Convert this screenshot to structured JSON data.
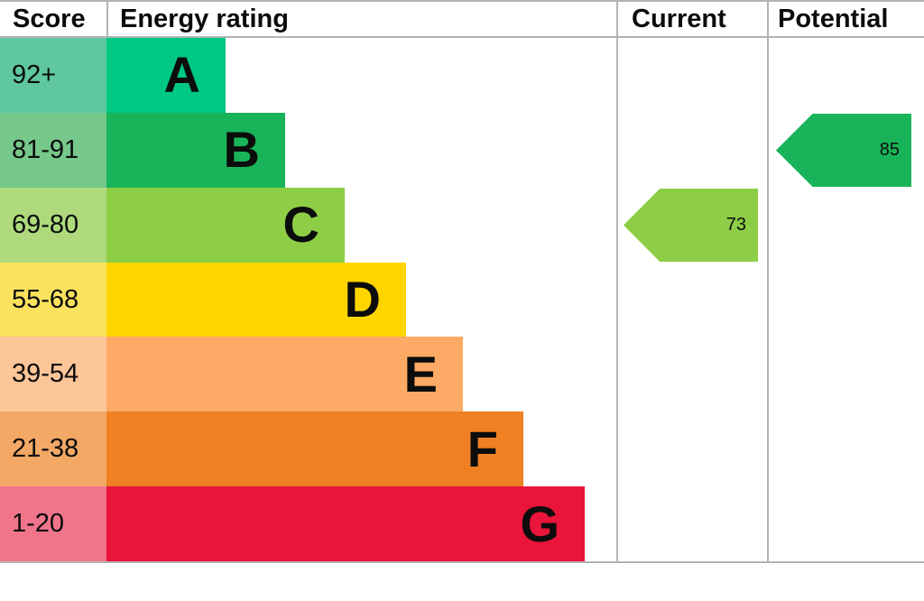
{
  "header": {
    "score": "Score",
    "energy_rating": "Energy rating",
    "current": "Current",
    "potential": "Potential"
  },
  "bands": [
    {
      "range": "92+",
      "letter": "A",
      "bar_color": "#00c781",
      "range_bg": "#5fc8a0"
    },
    {
      "range": "81-91",
      "letter": "B",
      "bar_color": "#19b459",
      "range_bg": "#76c88b"
    },
    {
      "range": "69-80",
      "letter": "C",
      "bar_color": "#8dce46",
      "range_bg": "#aeda7d"
    },
    {
      "range": "55-68",
      "letter": "D",
      "bar_color": "#ffd500",
      "range_bg": "#fae25e"
    },
    {
      "range": "39-54",
      "letter": "E",
      "bar_color": "#fcaa65",
      "range_bg": "#fcc698"
    },
    {
      "range": "21-38",
      "letter": "F",
      "bar_color": "#ef8023",
      "range_bg": "#f3a866"
    },
    {
      "range": "1-20",
      "letter": "G",
      "bar_color": "#e9153b",
      "range_bg": "#f0758b"
    }
  ],
  "markers": {
    "current": {
      "value": "73",
      "color": "#8dce46"
    },
    "potential": {
      "value": "85",
      "color": "#19b459"
    }
  },
  "border_color": "#b1b4b6",
  "chart_data": {
    "type": "bar",
    "title": "Energy rating",
    "categories": [
      "A",
      "B",
      "C",
      "D",
      "E",
      "F",
      "G"
    ],
    "score_ranges": [
      "92+",
      "81-91",
      "69-80",
      "55-68",
      "39-54",
      "21-38",
      "1-20"
    ],
    "band_colors": [
      "#00c781",
      "#19b459",
      "#8dce46",
      "#ffd500",
      "#fcaa65",
      "#ef8023",
      "#e9153b"
    ],
    "relative_bar_widths": [
      132,
      198,
      264,
      332,
      395,
      462,
      530
    ],
    "markers": [
      {
        "name": "Current",
        "value": 73,
        "band": "C",
        "color": "#8dce46"
      },
      {
        "name": "Potential",
        "value": 85,
        "band": "B",
        "color": "#19b459"
      }
    ],
    "columns": [
      "Score",
      "Energy rating",
      "Current",
      "Potential"
    ],
    "score_scale": [
      1,
      100
    ],
    "grid": false,
    "legend_position": "none"
  }
}
